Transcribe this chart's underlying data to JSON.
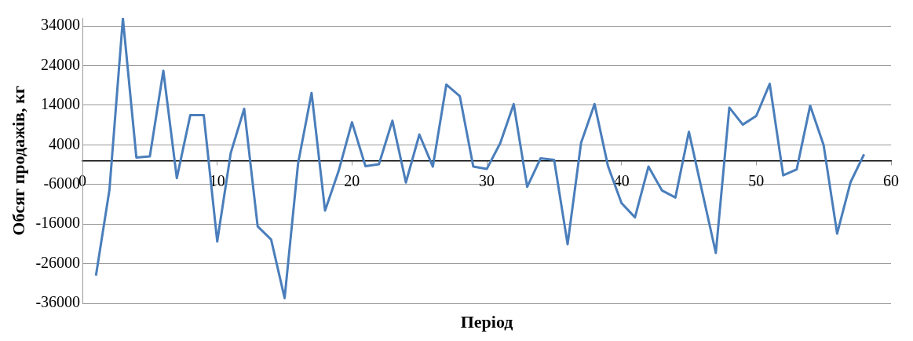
{
  "chart_data": {
    "type": "line",
    "xlabel": "Період",
    "ylabel": "Обсяг продажів, кг",
    "x": [
      1,
      2,
      3,
      4,
      5,
      6,
      7,
      8,
      9,
      10,
      11,
      12,
      13,
      14,
      15,
      16,
      17,
      18,
      19,
      20,
      21,
      22,
      23,
      24,
      25,
      26,
      27,
      28,
      29,
      30,
      31,
      32,
      33,
      34,
      35,
      36,
      37,
      38,
      39,
      40,
      41,
      42,
      43,
      44,
      45,
      46,
      47,
      48,
      49,
      50,
      51,
      52,
      53,
      54,
      55,
      56,
      57,
      58
    ],
    "series": [
      {
        "color": "#4a7ebb",
        "values": [
          -29000,
          -7400,
          35900,
          800,
          1100,
          22700,
          -4400,
          11500,
          11500,
          -20400,
          1900,
          13100,
          -16600,
          -19900,
          -34700,
          -700,
          17100,
          -12600,
          -2700,
          9700,
          -1400,
          -900,
          10100,
          -5500,
          6600,
          -1500,
          19200,
          16300,
          -1500,
          -2100,
          4400,
          14300,
          -6600,
          600,
          200,
          -21100,
          4500,
          14300,
          -1400,
          -10700,
          -14300,
          -1500,
          -7500,
          -9300,
          7300,
          -8000,
          -23300,
          13400,
          9100,
          11300,
          19400,
          -3700,
          -2200,
          13900,
          3900,
          -18400,
          -5400,
          1600
        ]
      }
    ],
    "xlim": [
      0,
      60
    ],
    "xticks": [
      0,
      10,
      20,
      30,
      40,
      50,
      60
    ],
    "ylim": [
      -36000,
      36000
    ],
    "yticks": [
      -36000,
      -26000,
      -16000,
      -6000,
      4000,
      14000,
      24000,
      34000
    ],
    "grid": "y",
    "marker": "none",
    "line_style": "solid",
    "legend": false
  }
}
